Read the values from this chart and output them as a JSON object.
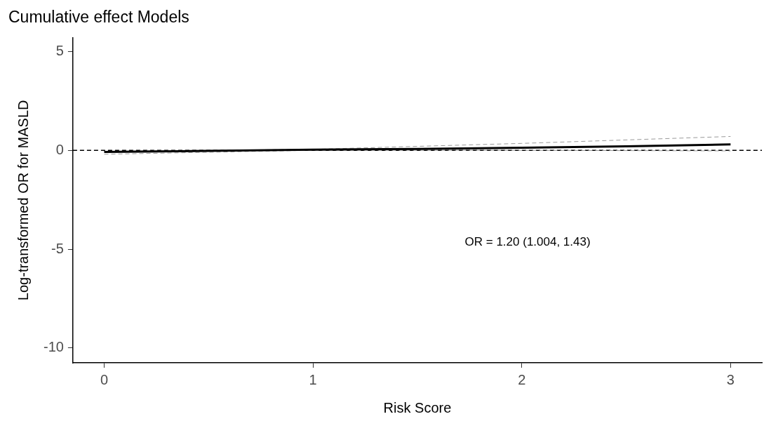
{
  "chart_data": {
    "type": "line",
    "title": "Cumulative effect Models",
    "xlabel": "Risk Score",
    "ylabel": "Log-transformed OR for MASLD",
    "xlim": [
      -0.15,
      3.15
    ],
    "xticks": [
      0,
      1,
      2,
      3
    ],
    "ylim": [
      -10.75,
      5.7
    ],
    "yticks": [
      -10,
      -5,
      0,
      5
    ],
    "grid": false,
    "marker": "none",
    "series": [
      {
        "color": "#000000",
        "line_style": "solid",
        "x": [
          0,
          0.5,
          1,
          1.5,
          2,
          2.5,
          3
        ],
        "values": [
          -0.08,
          -0.03,
          0.03,
          0.07,
          0.13,
          0.2,
          0.3
        ]
      },
      {
        "color": "#999999",
        "line_style": "dashed",
        "x": [
          0,
          1,
          2,
          3
        ],
        "values": [
          -0.05,
          0.05,
          0.35,
          0.7
        ]
      },
      {
        "color": "#999999",
        "line_style": "dashed",
        "x": [
          0,
          1,
          2,
          3
        ],
        "values": [
          -0.2,
          0.0,
          0.0,
          -0.03
        ]
      }
    ],
    "ref_lines": [
      {
        "axis": "y",
        "value": 0,
        "color": "#000000",
        "line_style": "dashed"
      }
    ],
    "annotations": [
      "OR = 1.20 (1.004, 1.43)"
    ]
  }
}
